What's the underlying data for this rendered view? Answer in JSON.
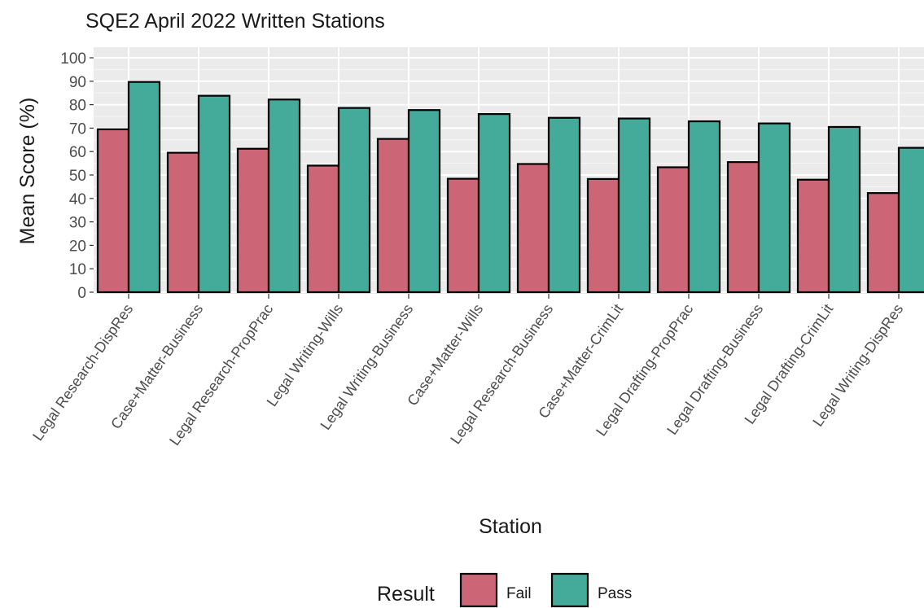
{
  "chart_data": {
    "type": "bar",
    "title": "SQE2 April 2022 Written Stations",
    "xlabel": "Station",
    "ylabel": "Mean Score (%)",
    "ylim": [
      0,
      102
    ],
    "yticks": [
      0,
      10,
      20,
      30,
      40,
      50,
      60,
      70,
      80,
      90,
      100
    ],
    "grid": true,
    "legend": {
      "title": "Result",
      "position": "bottom"
    },
    "categories": [
      "Legal Research-DispRes",
      "Case+Matter-Business",
      "Legal Research-PropPrac",
      "Legal Writing-Wills",
      "Legal Writing-Business",
      "Case+Matter-Wills",
      "Legal Research-Business",
      "Case+Matter-CrimLit",
      "Legal Drafting-PropPrac",
      "Legal Drafting-Business",
      "Legal Drafting-CrimLit",
      "Legal Writing-DispRes"
    ],
    "series": [
      {
        "name": "Fail",
        "color": "#CC6677",
        "values": [
          69.5,
          59.5,
          61.2,
          54,
          65.4,
          48.4,
          54.7,
          48.3,
          53.3,
          55.5,
          48,
          42.3
        ]
      },
      {
        "name": "Pass",
        "color": "#44AA99",
        "values": [
          89.7,
          83.8,
          82.2,
          78.6,
          77.7,
          76,
          74.4,
          74.1,
          72.9,
          72,
          70.5,
          61.6
        ]
      }
    ]
  }
}
